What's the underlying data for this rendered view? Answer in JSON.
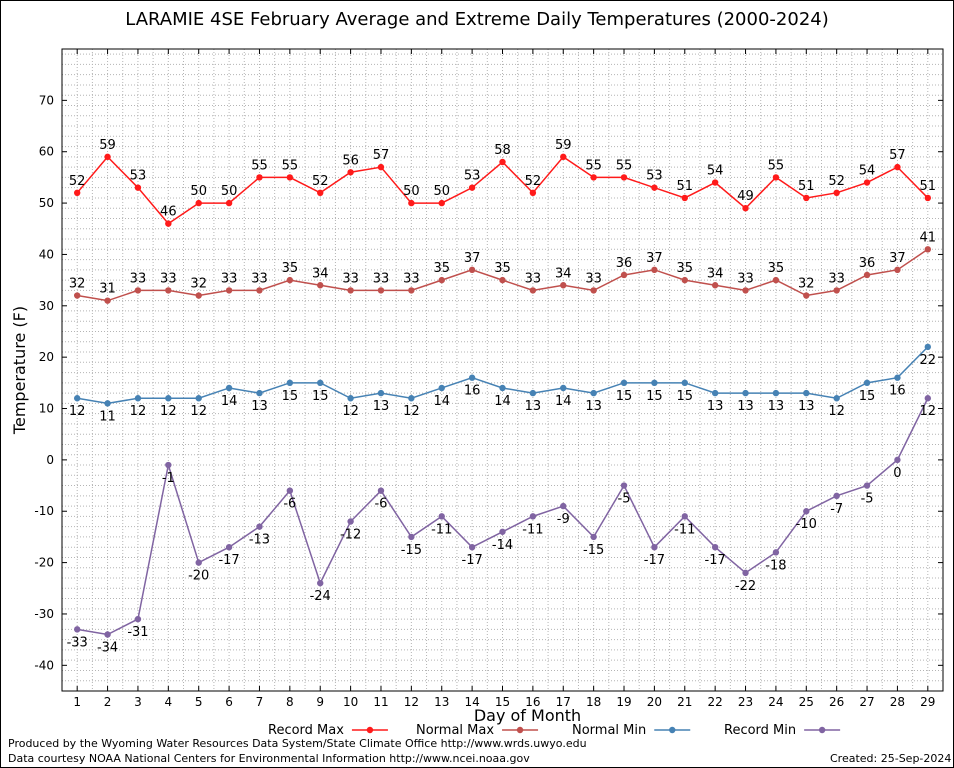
{
  "title": "LARAMIE 4SE February Average and Extreme Daily Temperatures (2000-2024)",
  "footer": {
    "line1": "Produced by the Wyoming Water Resources Data System/State Climate Office http://www.wrds.uwyo.edu",
    "line2": "Data courtesy NOAA National Centers for Environmental Information http://www.ncei.noaa.gov",
    "created": "Created:  25-Sep-2024"
  },
  "chart_data": {
    "type": "line",
    "title": "LARAMIE 4SE February Average and Extreme Daily Temperatures (2000-2024)",
    "xlabel": "Day of Month",
    "ylabel": "Temperature (F)",
    "x": [
      1,
      2,
      3,
      4,
      5,
      6,
      7,
      8,
      9,
      10,
      11,
      12,
      13,
      14,
      15,
      16,
      17,
      18,
      19,
      20,
      21,
      22,
      23,
      24,
      25,
      26,
      27,
      28,
      29
    ],
    "xlim": [
      0.5,
      29.5
    ],
    "ylim": [
      -45,
      80
    ],
    "yticks": [
      -40,
      -30,
      -20,
      -10,
      0,
      10,
      20,
      30,
      40,
      50,
      60,
      70
    ],
    "grid": true,
    "legend_position": "bottom",
    "series": [
      {
        "name": "Record Max",
        "color": "#ff1a1a",
        "values": [
          52,
          59,
          53,
          46,
          50,
          50,
          55,
          55,
          52,
          56,
          57,
          50,
          50,
          53,
          58,
          52,
          59,
          55,
          55,
          53,
          51,
          54,
          49,
          55,
          51,
          52,
          54,
          57,
          51
        ]
      },
      {
        "name": "Normal Max",
        "color": "#c0504d",
        "values": [
          32,
          31,
          33,
          33,
          32,
          33,
          33,
          35,
          34,
          33,
          33,
          33,
          35,
          37,
          35,
          33,
          34,
          33,
          36,
          37,
          35,
          34,
          33,
          35,
          32,
          33,
          36,
          37,
          41
        ]
      },
      {
        "name": "Normal Min",
        "color": "#4682b4",
        "values": [
          12,
          11,
          12,
          12,
          12,
          14,
          13,
          15,
          15,
          12,
          13,
          12,
          14,
          16,
          14,
          13,
          14,
          13,
          15,
          15,
          15,
          13,
          13,
          13,
          13,
          12,
          15,
          16,
          22
        ]
      },
      {
        "name": "Record Min",
        "color": "#8064a2",
        "values": [
          -33,
          -34,
          -31,
          -1,
          -20,
          -17,
          -13,
          -6,
          -24,
          -12,
          -6,
          -15,
          -11,
          -17,
          -14,
          -11,
          -9,
          -15,
          -5,
          -17,
          -11,
          -17,
          -22,
          -18,
          -10,
          -7,
          -5,
          0,
          12
        ]
      }
    ]
  }
}
